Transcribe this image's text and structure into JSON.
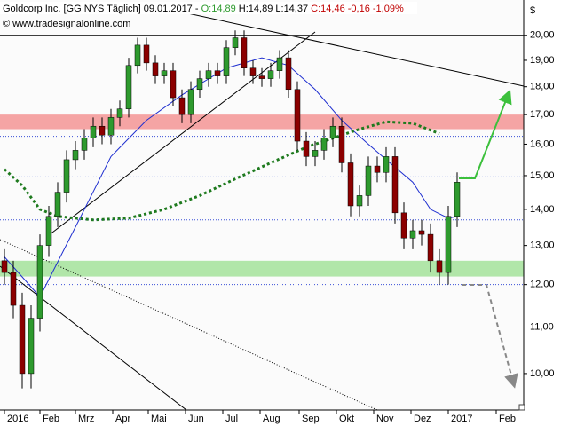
{
  "chart_data": {
    "type": "candlestick",
    "header": {
      "name": "Goldcorp Inc. [GG NYS  Täglich] 09.01.2017 -",
      "open": "O:14,89",
      "high": "H:14,89",
      "low": "L:14,37",
      "close": "C:14,46 -0,16 -1,09%"
    },
    "copyright": "© www.tradesignalonline.com",
    "currency": "$",
    "log": true,
    "ylim": [
      9.28,
      21.5
    ],
    "yticks": [
      {
        "value": 20,
        "label": "20,00"
      },
      {
        "value": 19,
        "label": "19,00"
      },
      {
        "value": 18,
        "label": "18,00"
      },
      {
        "value": 17,
        "label": "17,00"
      },
      {
        "value": 16,
        "label": "16,00"
      },
      {
        "value": 15,
        "label": "15,00"
      },
      {
        "value": 14,
        "label": "14,00"
      },
      {
        "value": 13,
        "label": "13,00"
      },
      {
        "value": 12,
        "label": "12,00"
      },
      {
        "value": 11,
        "label": "11,00"
      },
      {
        "value": 10,
        "label": "10,00"
      }
    ],
    "xlim": [
      -2.5,
      292.5
    ],
    "xticks": [
      {
        "value": 0,
        "label": "2016"
      },
      {
        "value": 20,
        "label": "Feb"
      },
      {
        "value": 40,
        "label": "Mrz"
      },
      {
        "value": 61,
        "label": "Apr"
      },
      {
        "value": 81,
        "label": "Mai"
      },
      {
        "value": 102,
        "label": "Jun"
      },
      {
        "value": 123,
        "label": "Jul"
      },
      {
        "value": 144,
        "label": "Aug"
      },
      {
        "value": 166,
        "label": "Sep"
      },
      {
        "value": 187,
        "label": "Okt"
      },
      {
        "value": 208,
        "label": "Nov"
      },
      {
        "value": 229,
        "label": "Dez"
      },
      {
        "value": 250,
        "label": "2017"
      },
      {
        "value": 277,
        "label": "Feb"
      }
    ],
    "x": [
      0,
      5,
      10,
      15,
      20,
      25,
      30,
      35,
      40,
      45,
      50,
      55,
      60,
      65,
      70,
      75,
      80,
      85,
      90,
      95,
      100,
      105,
      110,
      115,
      120,
      125,
      130,
      135,
      140,
      145,
      150,
      155,
      160,
      165,
      170,
      175,
      180,
      185,
      190,
      195,
      200,
      205,
      210,
      215,
      220,
      225,
      230,
      235,
      240,
      245,
      250,
      255
    ],
    "open": [
      12.6,
      12.3,
      11.5,
      10.0,
      11.2,
      13.0,
      13.8,
      14.5,
      15.5,
      15.8,
      16.2,
      16.6,
      16.3,
      16.9,
      17.2,
      18.8,
      19.6,
      18.9,
      18.4,
      18.6,
      17.6,
      17.0,
      17.9,
      18.3,
      18.6,
      18.4,
      19.5,
      19.9,
      18.7,
      18.4,
      18.3,
      18.6,
      19.1,
      17.9,
      16.1,
      15.6,
      15.8,
      16.2,
      16.6,
      15.4,
      14.1,
      14.4,
      15.3,
      15.1,
      15.6,
      13.9,
      13.2,
      13.4,
      13.3,
      12.6,
      12.3,
      13.8
    ],
    "high": [
      12.9,
      12.6,
      11.8,
      11.5,
      13.3,
      14.1,
      14.8,
      15.8,
      16.1,
      16.5,
      16.9,
      16.9,
      17.2,
      17.5,
      19.1,
      19.9,
      19.9,
      19.2,
      18.9,
      18.9,
      17.9,
      18.2,
      18.6,
      18.9,
      18.9,
      19.8,
      20.2,
      20.2,
      19.0,
      18.7,
      18.9,
      19.4,
      19.4,
      18.2,
      16.4,
      16.1,
      16.5,
      16.9,
      16.9,
      15.7,
      14.7,
      15.6,
      15.6,
      15.9,
      15.9,
      14.2,
      13.7,
      13.7,
      13.6,
      12.9,
      14.1,
      15.1
    ],
    "low": [
      12.0,
      11.2,
      9.7,
      9.7,
      10.9,
      12.7,
      13.5,
      14.2,
      15.2,
      15.5,
      15.9,
      16.0,
      16.0,
      16.6,
      16.9,
      18.5,
      18.6,
      18.1,
      18.1,
      17.3,
      16.7,
      16.7,
      17.6,
      18.0,
      18.1,
      18.1,
      19.2,
      18.4,
      18.1,
      18.0,
      18.0,
      18.3,
      17.6,
      15.8,
      15.3,
      15.3,
      15.5,
      15.9,
      15.1,
      13.8,
      13.8,
      14.1,
      14.8,
      14.8,
      13.6,
      12.9,
      12.9,
      13.0,
      12.3,
      12.0,
      12.0,
      13.5
    ],
    "close": [
      12.3,
      11.5,
      10.0,
      11.2,
      13.0,
      13.8,
      14.5,
      15.5,
      15.8,
      16.2,
      16.6,
      16.3,
      16.9,
      17.2,
      18.8,
      19.6,
      18.9,
      18.4,
      18.6,
      17.6,
      17.0,
      17.9,
      18.3,
      18.6,
      18.4,
      19.5,
      19.9,
      18.7,
      18.4,
      18.3,
      18.6,
      19.1,
      17.9,
      16.1,
      15.6,
      15.8,
      16.2,
      16.6,
      15.4,
      14.1,
      14.4,
      15.3,
      15.1,
      15.6,
      13.9,
      13.2,
      13.4,
      13.3,
      12.6,
      12.3,
      13.8,
      14.8
    ],
    "up_color": "#2e9a2e",
    "down_color": "#8b0000",
    "series": [
      {
        "color": "#1f2fd0",
        "x": [
          0,
          20,
          40,
          60,
          80,
          100,
          125,
          145,
          160,
          175,
          190,
          205,
          215,
          230,
          240,
          250,
          256
        ],
        "values": [
          12.7,
          11.7,
          13.5,
          15.6,
          16.8,
          17.7,
          18.7,
          19.1,
          18.8,
          17.9,
          16.8,
          16.0,
          15.5,
          14.8,
          14.0,
          13.75,
          13.8
        ]
      },
      {
        "color": "#1e7a1e",
        "dashed": true,
        "x": [
          0,
          10,
          20,
          30,
          50,
          70,
          90,
          110,
          130,
          150,
          170,
          190,
          200,
          215,
          230,
          245
        ],
        "values": [
          15.2,
          14.7,
          14.0,
          13.8,
          13.7,
          13.75,
          14.0,
          14.4,
          14.9,
          15.4,
          15.9,
          16.3,
          16.5,
          16.75,
          16.7,
          16.35
        ]
      }
    ],
    "levels": [
      16.26,
      14.96,
      13.7,
      12.0
    ],
    "zones": [
      {
        "color": "#f49a9a",
        "range": [
          16.5,
          17.0
        ]
      },
      {
        "color": "#a8e3a0",
        "range": [
          12.2,
          12.6
        ]
      }
    ]
  }
}
